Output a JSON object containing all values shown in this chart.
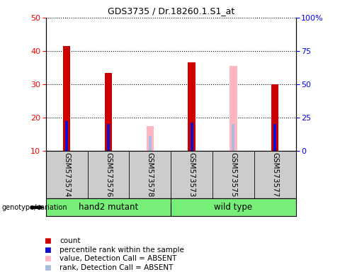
{
  "title": "GDS3735 / Dr.18260.1.S1_at",
  "samples": [
    "GSM573574",
    "GSM573576",
    "GSM573578",
    "GSM573573",
    "GSM573575",
    "GSM573577"
  ],
  "count_values": [
    41.5,
    33.5,
    null,
    36.5,
    null,
    30.0
  ],
  "rank_values": [
    19.0,
    18.0,
    null,
    18.5,
    null,
    18.0
  ],
  "absent_value_values": [
    null,
    null,
    17.5,
    null,
    35.5,
    null
  ],
  "absent_rank_values": [
    null,
    null,
    14.5,
    null,
    18.0,
    null
  ],
  "ylim": [
    10,
    50
  ],
  "y2lim": [
    0,
    100
  ],
  "yticks": [
    10,
    20,
    30,
    40,
    50
  ],
  "y2ticks": [
    0,
    25,
    50,
    75,
    100
  ],
  "count_color": "#CC0000",
  "rank_color": "#1010CC",
  "absent_value_color": "#FFB6C1",
  "absent_rank_color": "#AABBDD",
  "group_color": "#77EE77",
  "legend_items": [
    {
      "label": "count",
      "color": "#CC0000"
    },
    {
      "label": "percentile rank within the sample",
      "color": "#1010CC"
    },
    {
      "label": "value, Detection Call = ABSENT",
      "color": "#FFB6C1"
    },
    {
      "label": "rank, Detection Call = ABSENT",
      "color": "#AABBDD"
    }
  ],
  "genotype_label": "genotype/variation",
  "hand2_label": "hand2 mutant",
  "wildtype_label": "wild type"
}
